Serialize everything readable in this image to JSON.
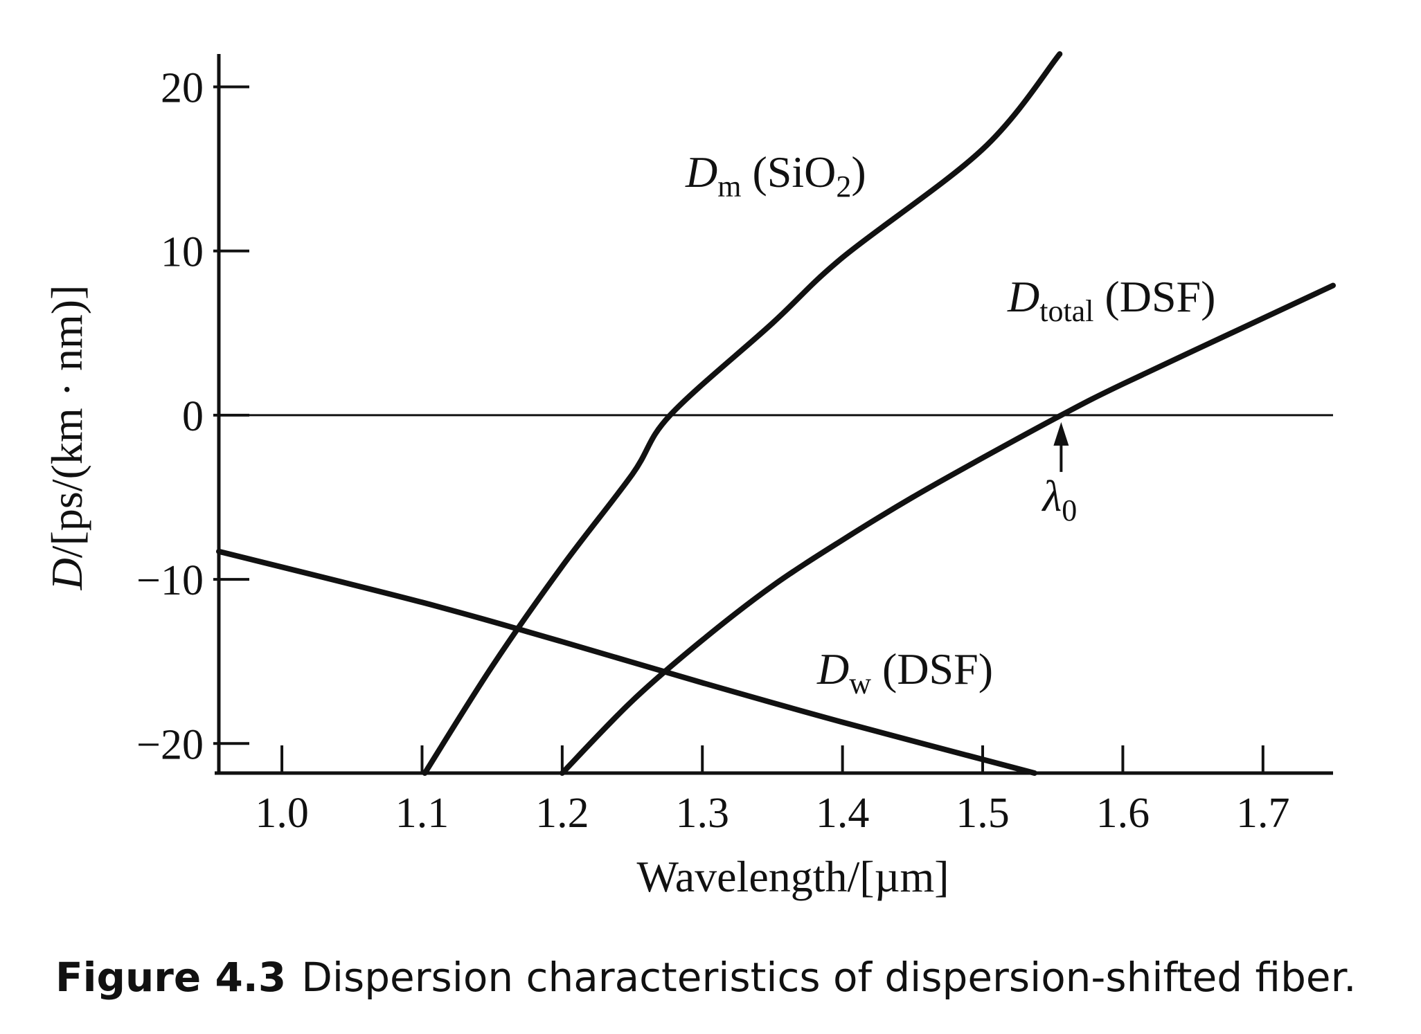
{
  "chart_data": {
    "type": "line",
    "xlabel": "Wavelength/[µm]",
    "ylabel_italic": "D",
    "ylabel_rest": "/[ps/(km · nm)]",
    "xlim": [
      0.955,
      1.75
    ],
    "ylim": [
      -21.8,
      22
    ],
    "xticks": [
      1.0,
      1.1,
      1.2,
      1.3,
      1.4,
      1.5,
      1.6,
      1.7
    ],
    "xtick_labels": [
      "1.0",
      "1.1",
      "1.2",
      "1.3",
      "1.4",
      "1.5",
      "1.6",
      "1.7"
    ],
    "yticks": [
      20,
      10,
      0,
      -10,
      -20
    ],
    "ytick_labels": [
      "20",
      "10",
      "0",
      "−10",
      "−20"
    ],
    "grid": false,
    "legend": "none",
    "series": [
      {
        "key": "dm",
        "label_symbol": "D",
        "label_sub": "m",
        "label_rest": " (SiO",
        "label_sub2": "2",
        "label_end": ")",
        "points": [
          [
            1.102,
            -21.8
          ],
          [
            1.15,
            -15.3
          ],
          [
            1.2,
            -9.2
          ],
          [
            1.25,
            -3.6
          ],
          [
            1.277,
            0
          ],
          [
            1.35,
            5.6
          ],
          [
            1.4,
            9.6
          ],
          [
            1.5,
            16.2
          ],
          [
            1.555,
            22
          ]
        ]
      },
      {
        "key": "dtotal",
        "label_symbol": "D",
        "label_sub": "total",
        "label_rest": " (DSF)",
        "points": [
          [
            1.2,
            -21.8
          ],
          [
            1.25,
            -17.4
          ],
          [
            1.3,
            -13.7
          ],
          [
            1.35,
            -10.4
          ],
          [
            1.4,
            -7.6
          ],
          [
            1.45,
            -5.0
          ],
          [
            1.5,
            -2.6
          ],
          [
            1.556,
            0
          ],
          [
            1.6,
            1.9
          ],
          [
            1.7,
            5.9
          ],
          [
            1.75,
            7.9
          ]
        ]
      },
      {
        "key": "dw",
        "label_symbol": "D",
        "label_sub": "w",
        "label_rest": " (DSF)",
        "points": [
          [
            0.955,
            -8.3
          ],
          [
            1.1,
            -11.4
          ],
          [
            1.2,
            -13.8
          ],
          [
            1.3,
            -16.3
          ],
          [
            1.4,
            -18.7
          ],
          [
            1.537,
            -21.8
          ]
        ]
      }
    ],
    "reference_line_y": 0,
    "annotation": {
      "symbol": "λ",
      "subscript": "0",
      "x": 1.556
    }
  },
  "caption": {
    "number": "Figure 4.3",
    "text": "Dispersion characteristics of dispersion-shifted fiber."
  }
}
